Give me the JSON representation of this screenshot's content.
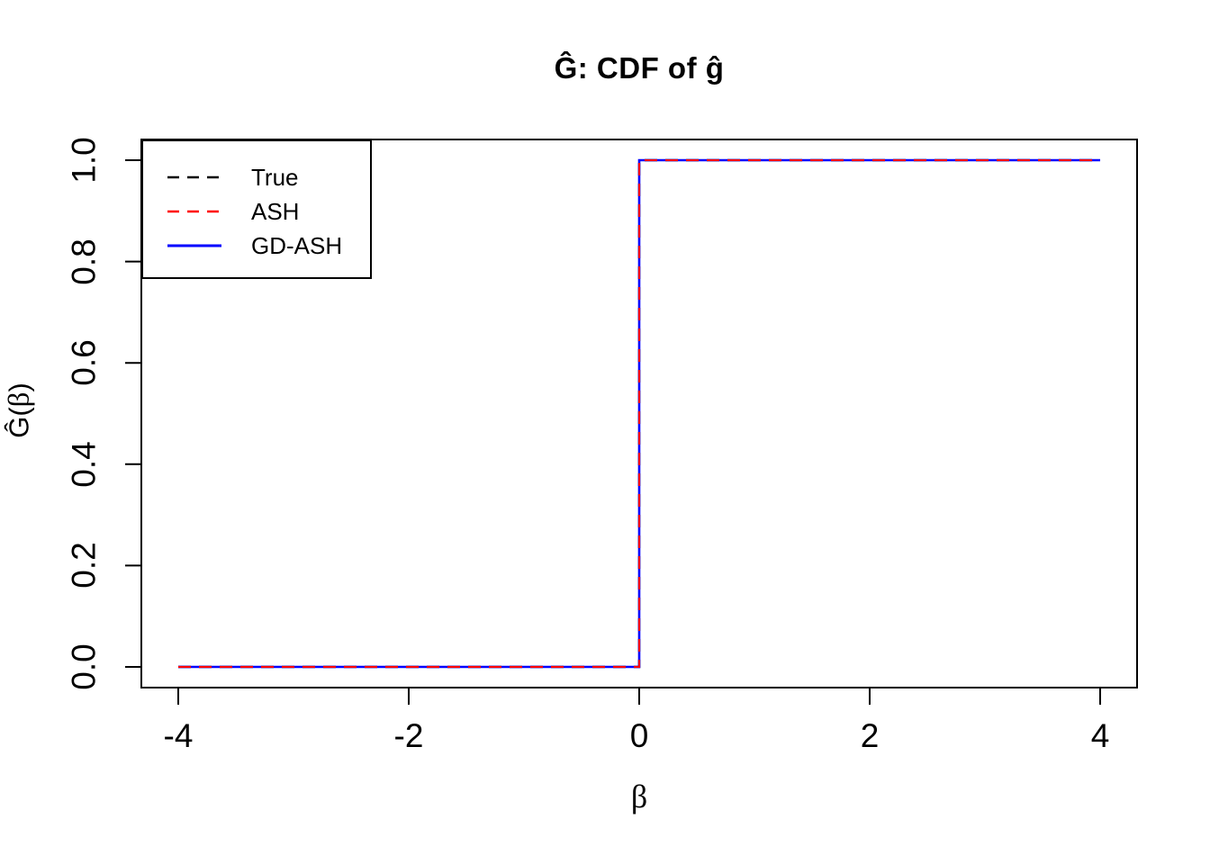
{
  "page": {
    "background": "#ffffff"
  },
  "chart_data": {
    "type": "line",
    "title": "Ĝ: CDF of ĝ",
    "xlabel": "β",
    "ylabel": "Ĝ(β)",
    "ylabel_parts": {
      "prefix": "Ĝ(",
      "beta": "β",
      "suffix": ")"
    },
    "xlim": [
      -4.32,
      4.32
    ],
    "ylim": [
      -0.042,
      1.042
    ],
    "xticks": [
      -4,
      -2,
      0,
      2,
      4
    ],
    "xtick_labels": [
      "-4",
      "-2",
      "0",
      "2",
      "4"
    ],
    "ytick_values": [
      0,
      0.2,
      0.4,
      0.6,
      0.8,
      1
    ],
    "ytick_labels": [
      "0.0",
      "0.2",
      "0.4",
      "0.6",
      "0.8",
      "1.0"
    ],
    "grid": false,
    "legend_position": "top-left",
    "frame_color": "#000000",
    "series": [
      {
        "name": "True",
        "color": "#000000",
        "linestyle": "dashed",
        "x": [
          -4,
          0,
          0,
          4
        ],
        "y": [
          0,
          0,
          1,
          1
        ]
      },
      {
        "name": "ASH",
        "color": "#ff0000",
        "linestyle": "dashed",
        "x": [
          -4,
          0,
          0,
          4
        ],
        "y": [
          0,
          0,
          1,
          1
        ]
      },
      {
        "name": "GD-ASH",
        "color": "#0000ff",
        "linestyle": "solid",
        "x": [
          -4,
          0,
          0,
          4
        ],
        "y": [
          0,
          0,
          1,
          1
        ]
      }
    ],
    "draw_order": [
      0,
      2,
      1
    ],
    "line_widths": [
      2.4,
      2.0,
      2.6
    ]
  }
}
